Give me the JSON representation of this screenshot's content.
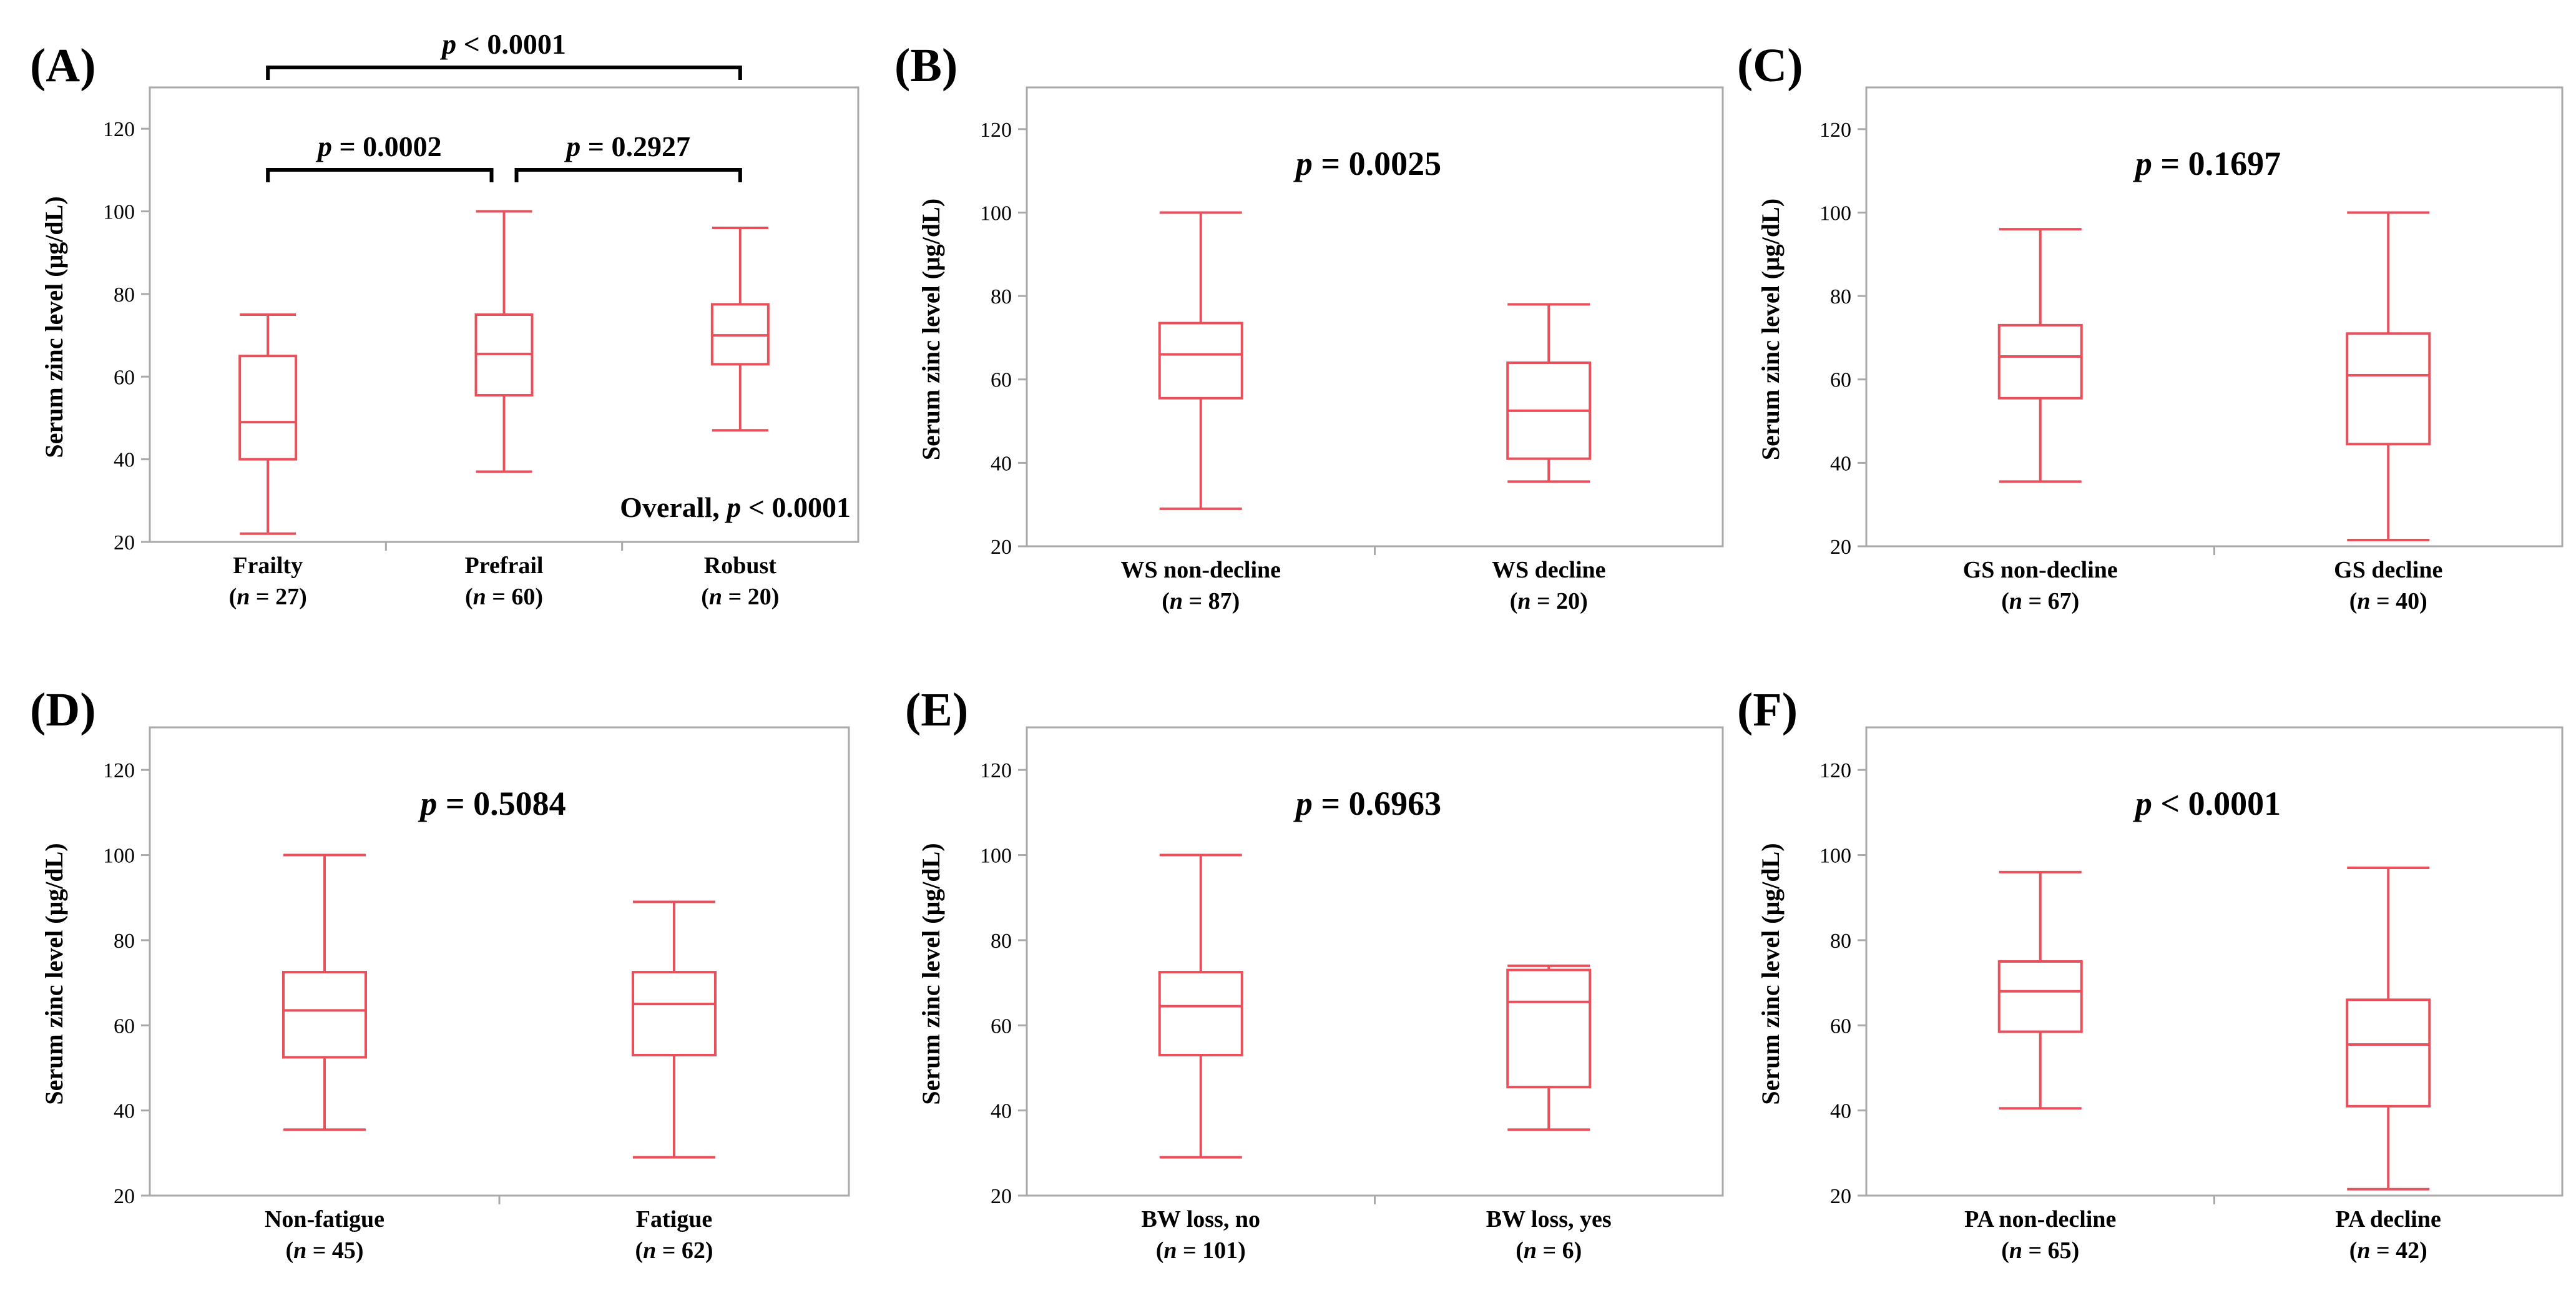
{
  "axis_label": "Serum zinc level (μg/dL)",
  "y_ticks": [
    20,
    40,
    60,
    80,
    100,
    120
  ],
  "colors": {
    "box": "#e8505b",
    "frame": "#a9a9a9",
    "text": "#000000"
  },
  "chart_data": [
    {
      "panel": "(A)",
      "type": "box",
      "ylabel": "Serum zinc level (μg/dL)",
      "ylim": [
        20,
        130
      ],
      "categories": [
        {
          "name": "Frailty",
          "n": "27",
          "min": 22,
          "q1": 40,
          "median": 49,
          "q3": 65,
          "max": 75
        },
        {
          "name": "Prefrail",
          "n": "60",
          "min": 37,
          "q1": 55.5,
          "median": 65.5,
          "q3": 75,
          "max": 100
        },
        {
          "name": "Robust",
          "n": "20",
          "min": 47,
          "q1": 63,
          "median": 70,
          "q3": 77.5,
          "max": 96
        }
      ],
      "annotations": [
        {
          "prefix": "p",
          "text": " < 0.0001",
          "from": 0,
          "to": 2,
          "level": "high"
        },
        {
          "prefix": "p",
          "text": " = 0.0002",
          "from": 0,
          "to": 1,
          "level": "low"
        },
        {
          "prefix": "p",
          "text": " = 0.2927",
          "from": 1,
          "to": 2,
          "level": "low"
        }
      ],
      "overall": {
        "label": "Overall, ",
        "prefix": "p",
        "text": " < 0.0001"
      }
    },
    {
      "panel": "(B)",
      "type": "box",
      "ylabel": "Serum zinc level (μg/dL)",
      "ylim": [
        20,
        130
      ],
      "p_prefix": "p",
      "p_text": " = 0.0025",
      "categories": [
        {
          "name": "WS non-decline",
          "n": "87",
          "min": 29,
          "q1": 55.5,
          "median": 66,
          "q3": 73.5,
          "max": 100
        },
        {
          "name": "WS decline",
          "n": "20",
          "min": 35.5,
          "q1": 41,
          "median": 52.5,
          "q3": 64,
          "max": 78
        }
      ]
    },
    {
      "panel": "(C)",
      "type": "box",
      "ylabel": "Serum zinc level (μg/dL)",
      "ylim": [
        20,
        130
      ],
      "p_prefix": "p",
      "p_text": " = 0.1697",
      "categories": [
        {
          "name": "GS non-decline",
          "n": "67",
          "min": 35.5,
          "q1": 55.5,
          "median": 65.5,
          "q3": 73,
          "max": 96
        },
        {
          "name": "GS decline",
          "n": "40",
          "min": 21.5,
          "q1": 44.5,
          "median": 61,
          "q3": 71,
          "max": 100
        }
      ]
    },
    {
      "panel": "(D)",
      "type": "box",
      "ylabel": "Serum zinc level (μg/dL)",
      "ylim": [
        20,
        130
      ],
      "p_prefix": "p",
      "p_text": " = 0.5084",
      "categories": [
        {
          "name": "Non-fatigue",
          "n": "45",
          "min": 35.5,
          "q1": 52.5,
          "median": 63.5,
          "q3": 72.5,
          "max": 100
        },
        {
          "name": "Fatigue",
          "n": "62",
          "min": 29,
          "q1": 53,
          "median": 65,
          "q3": 72.5,
          "max": 89
        }
      ]
    },
    {
      "panel": "(E)",
      "type": "box",
      "ylabel": "Serum zinc level (μg/dL)",
      "ylim": [
        20,
        130
      ],
      "p_prefix": "p",
      "p_text": " = 0.6963",
      "categories": [
        {
          "name": "BW loss, no",
          "n": "101",
          "min": 29,
          "q1": 53,
          "median": 64.5,
          "q3": 72.5,
          "max": 100
        },
        {
          "name": "BW loss, yes",
          "n": "6",
          "min": 35.5,
          "q1": 45.5,
          "median": 65.5,
          "q3": 73,
          "max": 74
        }
      ]
    },
    {
      "panel": "(F)",
      "type": "box",
      "ylabel": "Serum zinc level (μg/dL)",
      "ylim": [
        20,
        130
      ],
      "p_prefix": "p",
      "p_text": " < 0.0001",
      "categories": [
        {
          "name": "PA non-decline",
          "n": "65",
          "min": 40.5,
          "q1": 58.5,
          "median": 68,
          "q3": 75,
          "max": 96
        },
        {
          "name": "PA decline",
          "n": "42",
          "min": 21.5,
          "q1": 41,
          "median": 55.5,
          "q3": 66,
          "max": 97
        }
      ]
    }
  ]
}
